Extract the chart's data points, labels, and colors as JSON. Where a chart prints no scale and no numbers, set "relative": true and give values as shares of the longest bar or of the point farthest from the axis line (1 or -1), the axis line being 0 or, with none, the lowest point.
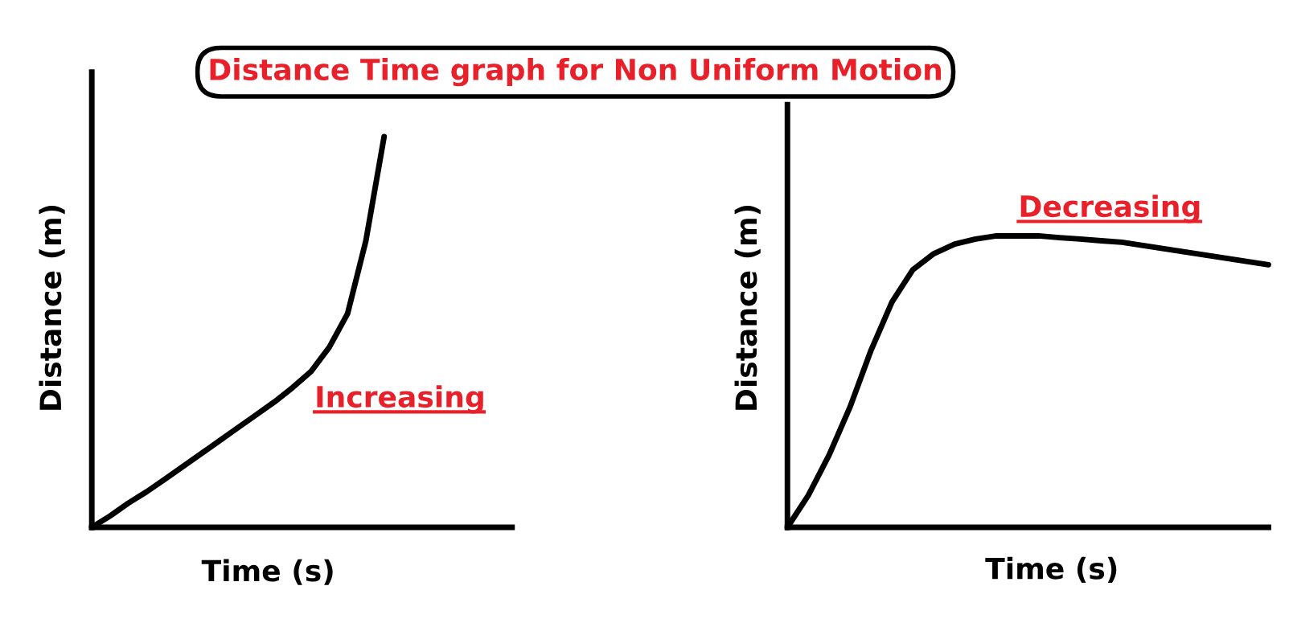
{
  "chart_data": [
    {
      "type": "line",
      "title": "Distance Time graph for Non Uniform Motion",
      "xlabel": "Time (s)",
      "ylabel": "Distance (m)",
      "relative": true,
      "annotations": [
        "Increasing"
      ],
      "categories": [
        null,
        null,
        null,
        null,
        null,
        null,
        null,
        null,
        null,
        null,
        null,
        null,
        null,
        null,
        null,
        null,
        null,
        null,
        null,
        null,
        null,
        null,
        null,
        null
      ],
      "series": [
        {
          "color": "#000000",
          "values": [
            0,
            0.029,
            0.062,
            0.091,
            0.123,
            0.156,
            0.189,
            0.222,
            0.255,
            0.288,
            0.321,
            0.358,
            0.399,
            0.461,
            0.547,
            0.733,
            1,
            null,
            null,
            null,
            null,
            null,
            null,
            null
          ]
        }
      ]
    },
    {
      "type": "line",
      "xlabel": "Time (s)",
      "ylabel": "Distance (m)",
      "relative": true,
      "annotations": [
        "Decreasing"
      ],
      "categories": [
        null,
        null,
        null,
        null,
        null,
        null,
        null,
        null,
        null,
        null,
        null,
        null,
        null,
        null,
        null,
        null,
        null,
        null,
        null,
        null,
        null,
        null,
        null,
        null
      ],
      "series": [
        {
          "color": "#000000",
          "values": [
            0,
            0.11,
            0.249,
            0.414,
            0.608,
            0.773,
            0.884,
            0.939,
            0.972,
            0.989,
            1,
            1,
            1,
            0.994,
            0.989,
            0.983,
            0.978,
            0.967,
            0.956,
            0.945,
            0.934,
            0.923,
            0.912,
            0.901
          ]
        }
      ]
    }
  ]
}
